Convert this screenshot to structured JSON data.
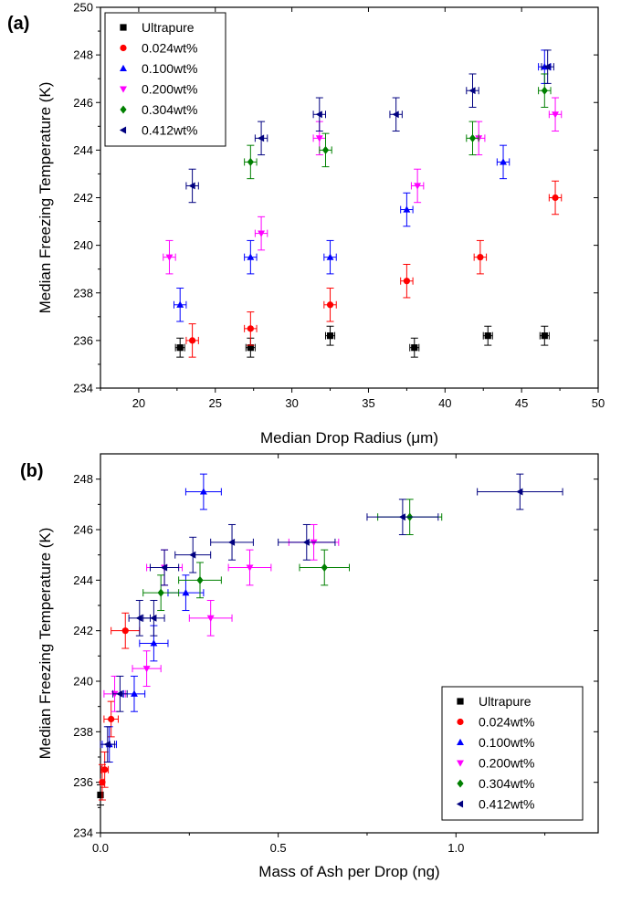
{
  "chart_data": [
    {
      "panel_label": "(a)",
      "type": "scatter",
      "xlabel": "Median Drop Radius (μm)",
      "ylabel": "Median Freezing Temperature (K)",
      "xlim": [
        17.5,
        50
      ],
      "ylim": [
        234,
        250
      ],
      "x_ticks": [
        20,
        25,
        30,
        35,
        40,
        45,
        50
      ],
      "y_ticks": [
        234,
        236,
        238,
        240,
        242,
        244,
        246,
        248,
        250
      ],
      "legend_position": "top-left",
      "series": [
        {
          "name": "Ultrapure",
          "marker": "square",
          "color": "#000000",
          "points": [
            [
              22.7,
              235.7
            ],
            [
              27.3,
              235.7
            ],
            [
              32.5,
              236.2
            ],
            [
              38.0,
              235.7
            ],
            [
              42.8,
              236.2
            ],
            [
              46.5,
              236.2
            ]
          ],
          "xerr": 0.3,
          "yerr": 0.4
        },
        {
          "name": "0.024wt%",
          "marker": "circle",
          "color": "#ff0000",
          "points": [
            [
              23.5,
              236.0
            ],
            [
              27.3,
              236.5
            ],
            [
              32.5,
              237.5
            ],
            [
              37.5,
              238.5
            ],
            [
              42.3,
              239.5
            ],
            [
              47.2,
              242.0
            ]
          ],
          "xerr": 0.4,
          "yerr": 0.7
        },
        {
          "name": "0.100wt%",
          "marker": "triangle-up",
          "color": "#0000ff",
          "points": [
            [
              22.7,
              237.5
            ],
            [
              27.3,
              239.5
            ],
            [
              32.5,
              239.5
            ],
            [
              37.5,
              241.5
            ],
            [
              43.8,
              243.5
            ],
            [
              46.5,
              247.5
            ]
          ],
          "xerr": 0.4,
          "yerr": 0.7
        },
        {
          "name": "0.200wt%",
          "marker": "triangle-down",
          "color": "#ff00ff",
          "points": [
            [
              22.0,
              239.5
            ],
            [
              28.0,
              240.5
            ],
            [
              31.8,
              244.5
            ],
            [
              38.2,
              242.5
            ],
            [
              42.2,
              244.5
            ],
            [
              47.2,
              245.5
            ]
          ],
          "xerr": 0.4,
          "yerr": 0.7
        },
        {
          "name": "0.304wt%",
          "marker": "diamond",
          "color": "#008000",
          "points": [
            [
              27.3,
              243.5
            ],
            [
              32.2,
              244.0
            ],
            [
              41.8,
              244.5
            ],
            [
              46.5,
              246.5
            ]
          ],
          "xerr": 0.4,
          "yerr": 0.7
        },
        {
          "name": "0.412wt%",
          "marker": "triangle-left",
          "color": "#000080",
          "points": [
            [
              23.5,
              242.5
            ],
            [
              28.0,
              244.5
            ],
            [
              31.8,
              245.5
            ],
            [
              36.8,
              245.5
            ],
            [
              41.8,
              246.5
            ],
            [
              46.7,
              247.5
            ]
          ],
          "xerr": 0.4,
          "yerr": 0.7
        }
      ]
    },
    {
      "panel_label": "(b)",
      "type": "scatter",
      "xlabel": "Mass of Ash per Drop (ng)",
      "ylabel": "Median Freezing Temperature (K)",
      "xlim": [
        0,
        1.4
      ],
      "ylim": [
        234,
        249
      ],
      "x_ticks": [
        0.0,
        0.5,
        1.0
      ],
      "x_tick_labels": [
        "0.0",
        "0.5",
        "1.0"
      ],
      "y_ticks": [
        234,
        236,
        238,
        240,
        242,
        244,
        246,
        248
      ],
      "legend_position": "bottom-right",
      "series": [
        {
          "name": "Ultrapure",
          "marker": "square",
          "color": "#000000",
          "points": [
            [
              0.0,
              235.5
            ]
          ],
          "xerr": [
            0.0
          ],
          "yerr": 0.4
        },
        {
          "name": "0.024wt%",
          "marker": "circle",
          "color": "#ff0000",
          "points": [
            [
              0.005,
              236.0
            ],
            [
              0.012,
              236.5
            ],
            [
              0.03,
              238.5
            ],
            [
              0.07,
              242.0
            ]
          ],
          "xerr": [
            0.005,
            0.01,
            0.02,
            0.04
          ],
          "yerr": 0.7
        },
        {
          "name": "0.100wt%",
          "marker": "triangle-up",
          "color": "#0000ff",
          "points": [
            [
              0.025,
              237.5
            ],
            [
              0.095,
              239.5
            ],
            [
              0.15,
              241.5
            ],
            [
              0.24,
              243.5
            ],
            [
              0.29,
              247.5
            ]
          ],
          "xerr": [
            0.02,
            0.03,
            0.04,
            0.05,
            0.05
          ],
          "yerr": 0.7
        },
        {
          "name": "0.200wt%",
          "marker": "triangle-down",
          "color": "#ff00ff",
          "points": [
            [
              0.04,
              239.5
            ],
            [
              0.13,
              240.5
            ],
            [
              0.18,
              244.5
            ],
            [
              0.31,
              242.5
            ],
            [
              0.42,
              244.5
            ],
            [
              0.6,
              245.5
            ]
          ],
          "xerr": [
            0.03,
            0.04,
            0.05,
            0.06,
            0.06,
            0.07
          ],
          "yerr": 0.7
        },
        {
          "name": "0.304wt%",
          "marker": "diamond",
          "color": "#008000",
          "points": [
            [
              0.17,
              243.5
            ],
            [
              0.28,
              244.0
            ],
            [
              0.63,
              244.5
            ],
            [
              0.87,
              246.5
            ]
          ],
          "xerr": [
            0.05,
            0.06,
            0.07,
            0.09
          ],
          "yerr": 0.7
        },
        {
          "name": "0.412wt%",
          "marker": "triangle-left",
          "color": "#000080",
          "points": [
            [
              0.02,
              237.5
            ],
            [
              0.055,
              239.5
            ],
            [
              0.11,
              242.5
            ],
            [
              0.15,
              242.5
            ],
            [
              0.18,
              244.5
            ],
            [
              0.26,
              245.0
            ],
            [
              0.37,
              245.5
            ],
            [
              0.58,
              245.5
            ],
            [
              0.85,
              246.5
            ],
            [
              1.18,
              247.5
            ]
          ],
          "xerr": [
            0.02,
            0.02,
            0.03,
            0.03,
            0.04,
            0.05,
            0.06,
            0.08,
            0.1,
            0.12
          ],
          "yerr": 0.7
        }
      ]
    }
  ]
}
